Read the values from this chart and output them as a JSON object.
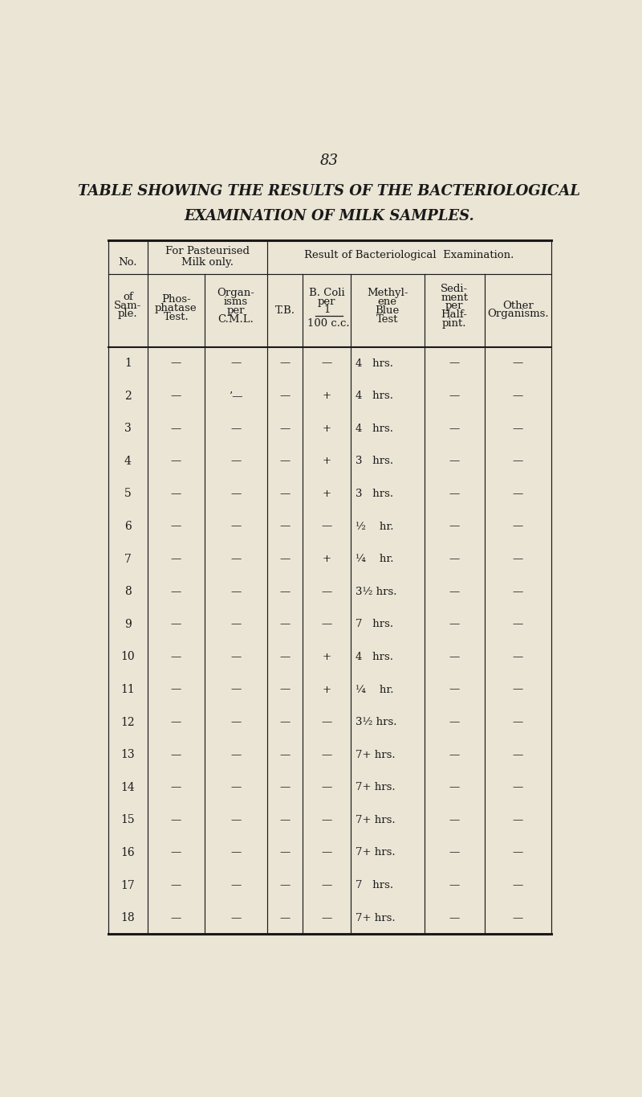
{
  "page_number": "83",
  "title_line1": "TABLE SHOWING THE RESULTS OF THE BACTERIOLOGICAL",
  "title_line2": "EXAMINATION OF MILK SAMPLES.",
  "bg_color": "#EAE5D5",
  "text_color": "#1a1a1a",
  "rows": [
    [
      "1",
      "—",
      "—",
      "—",
      "—",
      "4   hrs.",
      "—",
      "—"
    ],
    [
      "2",
      "—",
      "’—",
      "—",
      "+",
      "4   hrs.",
      "—",
      "—"
    ],
    [
      "3",
      "—",
      "—",
      "—",
      "+",
      "4   hrs.",
      "—",
      "—"
    ],
    [
      "4",
      "—",
      "—",
      "—",
      "+",
      "3   hrs.",
      "—",
      "—"
    ],
    [
      "5",
      "—",
      "—",
      "—",
      "+",
      "3   hrs.",
      "—",
      "—"
    ],
    [
      "6",
      "—",
      "—",
      "—",
      "—",
      "½    hr.",
      "—",
      "—"
    ],
    [
      "7",
      "—",
      "—",
      "—",
      "+",
      "¼    hr.",
      "—",
      "—"
    ],
    [
      "8",
      "—",
      "—",
      "—",
      "—",
      "3½ hrs.",
      "—",
      "—"
    ],
    [
      "9",
      "—",
      "—",
      "—",
      "—",
      "7   hrs.",
      "—",
      "—"
    ],
    [
      "10",
      "—",
      "—",
      "—",
      "+",
      "4   hrs.",
      "—",
      "—"
    ],
    [
      "11",
      "—",
      "—",
      "—",
      "+",
      "¼    hr.",
      "—",
      "—"
    ],
    [
      "12",
      "—",
      "—",
      "—",
      "—",
      "3½ hrs.",
      "—",
      "—"
    ],
    [
      "13",
      "—",
      "—",
      "—",
      "—",
      "7+ hrs.",
      "—",
      "—"
    ],
    [
      "14",
      "—",
      "—",
      "—",
      "—",
      "7+ hrs.",
      "—",
      "—"
    ],
    [
      "15",
      "—",
      "—",
      "—",
      "—",
      "7+ hrs.",
      "—",
      "—"
    ],
    [
      "16",
      "—",
      "—",
      "—",
      "—",
      "7+ hrs.",
      "—",
      "—"
    ],
    [
      "17",
      "—",
      "—",
      "—",
      "—",
      "7   hrs.",
      "—",
      "—"
    ],
    [
      "18",
      "—",
      "—",
      "—",
      "—",
      "7+ hrs.",
      "—",
      "—"
    ]
  ]
}
